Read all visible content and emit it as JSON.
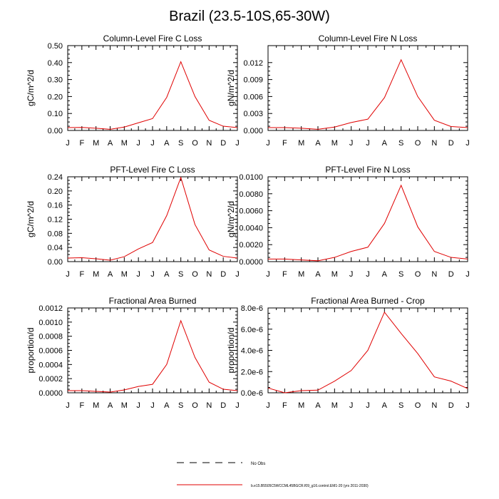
{
  "title": "Brazil (23.5-10S,65-30W)",
  "colors": {
    "series": "#e00000",
    "axis": "#000000",
    "legend_obs": "#000000"
  },
  "legend": {
    "obs_label": "No Obs",
    "model_label": "b.e15.B5505C5WCCML45BGCR.f09_g16.control.EM1-20 (yrs 2011-2030)"
  },
  "chart_data": [
    {
      "type": "line",
      "title": "Column-Level Fire C Loss",
      "ylabel": "gC/m^2/d",
      "xlabel": "",
      "x": [
        "J",
        "F",
        "M",
        "A",
        "M",
        "J",
        "J",
        "A",
        "S",
        "O",
        "N",
        "D",
        "J"
      ],
      "ylim": [
        0,
        0.5
      ],
      "yticks": [
        0,
        0.1,
        0.2,
        0.3,
        0.4,
        0.5
      ],
      "yticklabels": [
        "0.00",
        "0.10",
        "0.20",
        "0.30",
        "0.40",
        "0.50"
      ],
      "series": [
        {
          "name": "model",
          "values": [
            0.017,
            0.018,
            0.013,
            0.007,
            0.02,
            0.045,
            0.07,
            0.195,
            0.405,
            0.2,
            0.06,
            0.025,
            0.017
          ]
        }
      ]
    },
    {
      "type": "line",
      "title": "Column-Level Fire N Loss",
      "ylabel": "gN/m^2/d",
      "xlabel": "",
      "x": [
        "J",
        "F",
        "M",
        "A",
        "M",
        "J",
        "J",
        "A",
        "S",
        "O",
        "N",
        "D",
        "J"
      ],
      "ylim": [
        0,
        0.015
      ],
      "yticks": [
        0,
        0.003,
        0.006,
        0.009,
        0.012
      ],
      "yticklabels": [
        "0.000",
        "0.003",
        "0.006",
        "0.009",
        "0.012"
      ],
      "series": [
        {
          "name": "model",
          "values": [
            0.0005,
            0.0005,
            0.0004,
            0.0002,
            0.0006,
            0.0014,
            0.002,
            0.0058,
            0.0125,
            0.006,
            0.0018,
            0.0007,
            0.0005
          ]
        }
      ]
    },
    {
      "type": "line",
      "title": "PFT-Level Fire C Loss",
      "ylabel": "gC/m^2/d",
      "xlabel": "",
      "x": [
        "J",
        "F",
        "M",
        "A",
        "M",
        "J",
        "J",
        "A",
        "S",
        "O",
        "N",
        "D",
        "J"
      ],
      "ylim": [
        0,
        0.24
      ],
      "yticks": [
        0,
        0.04,
        0.08,
        0.12,
        0.16,
        0.2,
        0.24
      ],
      "yticklabels": [
        "0.00",
        "0.04",
        "0.08",
        "0.12",
        "0.16",
        "0.20",
        "0.24"
      ],
      "series": [
        {
          "name": "model",
          "values": [
            0.01,
            0.011,
            0.008,
            0.004,
            0.014,
            0.036,
            0.054,
            0.13,
            0.238,
            0.105,
            0.033,
            0.015,
            0.01
          ]
        }
      ]
    },
    {
      "type": "line",
      "title": "PFT-Level Fire N Loss",
      "ylabel": "gN/m^2/d",
      "xlabel": "",
      "x": [
        "J",
        "F",
        "M",
        "A",
        "M",
        "J",
        "J",
        "A",
        "S",
        "O",
        "N",
        "D",
        "J"
      ],
      "ylim": [
        0,
        0.01
      ],
      "yticks": [
        0,
        0.002,
        0.004,
        0.006,
        0.008,
        0.01
      ],
      "yticklabels": [
        "0.0000",
        "0.0020",
        "0.0040",
        "0.0060",
        "0.0080",
        "0.0100"
      ],
      "series": [
        {
          "name": "model",
          "values": [
            0.0003,
            0.0003,
            0.0002,
            0.0001,
            0.0005,
            0.0012,
            0.0017,
            0.0045,
            0.009,
            0.0041,
            0.0012,
            0.0005,
            0.0003
          ]
        }
      ]
    },
    {
      "type": "line",
      "title": "Fractional Area Burned",
      "ylabel": "proportion/d",
      "xlabel": "",
      "x": [
        "J",
        "F",
        "M",
        "A",
        "M",
        "J",
        "J",
        "A",
        "S",
        "O",
        "N",
        "D",
        "J"
      ],
      "ylim": [
        0,
        0.0012
      ],
      "yticks": [
        0,
        0.0002,
        0.0004,
        0.0006,
        0.0008,
        0.001,
        0.0012
      ],
      "yticklabels": [
        "0.0000",
        "0.0002",
        "0.0004",
        "0.0006",
        "0.0008",
        "0.0010",
        "0.0012"
      ],
      "series": [
        {
          "name": "model",
          "values": [
            3e-05,
            3e-05,
            2e-05,
            1e-05,
            4e-05,
            9e-05,
            0.00012,
            0.0004,
            0.00102,
            0.0005,
            0.00015,
            5e-05,
            3e-05
          ]
        }
      ]
    },
    {
      "type": "line",
      "title": "Fractional Area Burned - Crop",
      "ylabel": "proportion/d",
      "xlabel": "",
      "x": [
        "J",
        "F",
        "M",
        "A",
        "M",
        "J",
        "J",
        "A",
        "S",
        "O",
        "N",
        "D",
        "J"
      ],
      "ylim": [
        0,
        8e-06
      ],
      "yticks": [
        0,
        2e-06,
        4e-06,
        6e-06,
        8e-06
      ],
      "yticklabels": [
        "0.0e-6",
        "2.0e-6",
        "4.0e-6",
        "6.0e-6",
        "8.0e-6"
      ],
      "series": [
        {
          "name": "model",
          "values": [
            4.5e-07,
            0,
            2e-07,
            2.5e-07,
            1.1e-06,
            2.1e-06,
            4e-06,
            7.6e-06,
            5.6e-06,
            3.7e-06,
            1.5e-06,
            1.1e-06,
            4e-07
          ]
        }
      ]
    }
  ]
}
